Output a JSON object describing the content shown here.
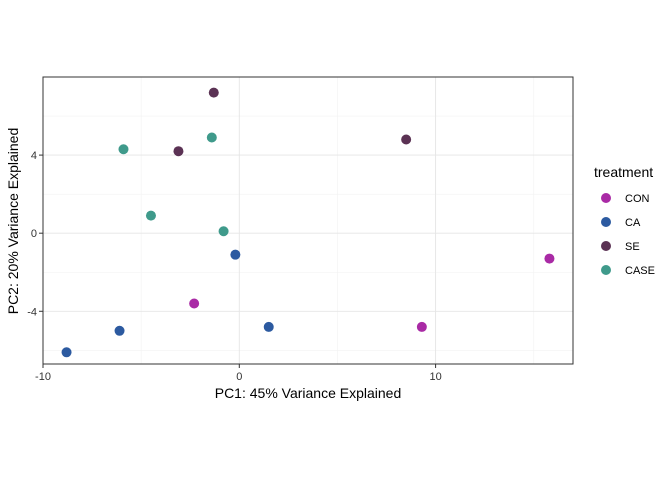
{
  "chart_data": {
    "type": "scatter",
    "title": "",
    "xlabel": "PC1: 45% Variance Explained",
    "ylabel": "PC2: 20% Variance Explained",
    "xlim": [
      -10,
      17
    ],
    "ylim": [
      -6.7,
      8
    ],
    "x_ticks": [
      -10,
      0,
      10
    ],
    "y_ticks": [
      -4,
      0,
      4
    ],
    "x_tick_labels": [
      "-10",
      "0",
      "10"
    ],
    "y_tick_labels": [
      "-4",
      "0",
      "4"
    ],
    "grid": true,
    "legend": {
      "title": "treatment",
      "placement": "right"
    },
    "series": [
      {
        "name": "CON",
        "color": "#a92aa5",
        "points": [
          {
            "x": -2.3,
            "y": -3.6
          },
          {
            "x": 9.3,
            "y": -4.8
          },
          {
            "x": 15.8,
            "y": -1.3
          }
        ]
      },
      {
        "name": "CA",
        "color": "#2c5aa0",
        "points": [
          {
            "x": -8.8,
            "y": -6.1
          },
          {
            "x": -6.1,
            "y": -5.0
          },
          {
            "x": -0.2,
            "y": -1.1
          },
          {
            "x": 1.5,
            "y": -4.8
          }
        ]
      },
      {
        "name": "SE",
        "color": "#5b3254",
        "points": [
          {
            "x": -1.3,
            "y": 7.2
          },
          {
            "x": -3.1,
            "y": 4.2
          },
          {
            "x": 8.5,
            "y": 4.8
          }
        ]
      },
      {
        "name": "CASE",
        "color": "#3f9a8b",
        "points": [
          {
            "x": -5.9,
            "y": 4.3
          },
          {
            "x": -1.4,
            "y": 4.9
          },
          {
            "x": -4.5,
            "y": 0.9
          },
          {
            "x": -0.8,
            "y": 0.1
          }
        ]
      }
    ]
  }
}
